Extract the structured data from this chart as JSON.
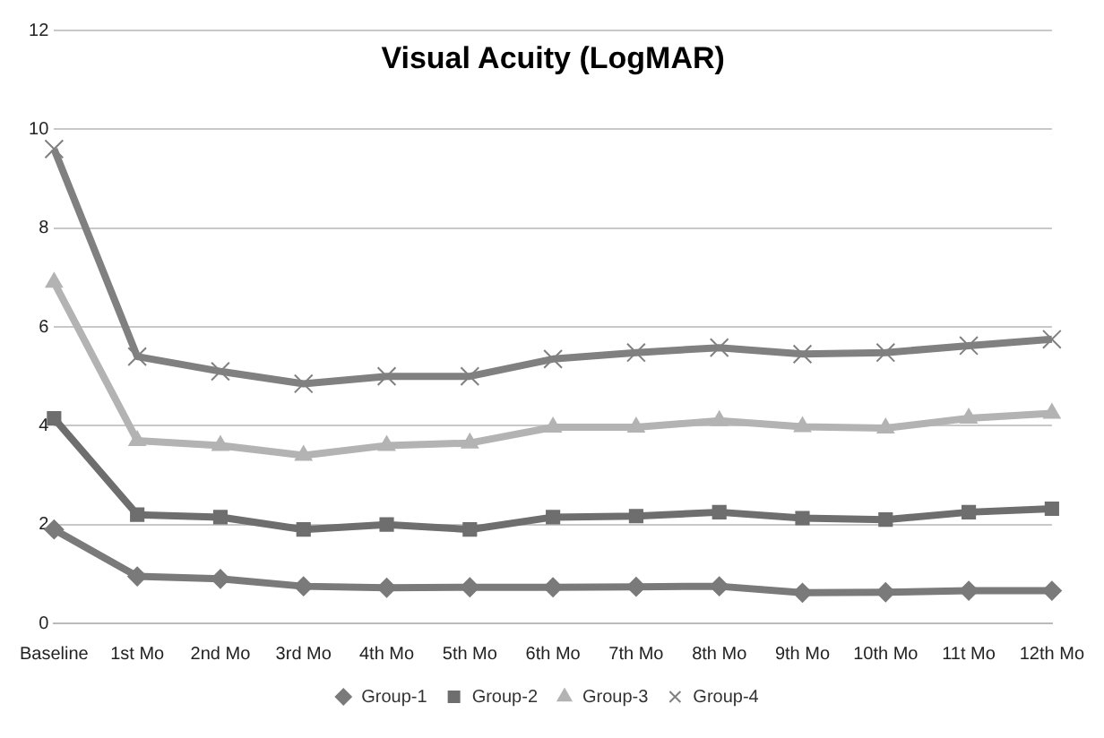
{
  "chart_data": {
    "type": "line",
    "title": "Visual Acuity (LogMAR)",
    "categories": [
      "Baseline",
      "1st Mo",
      "2nd Mo",
      "3rd Mo",
      "4th Mo",
      "5th Mo",
      "6th Mo",
      "7th Mo",
      "8th Mo",
      "9th Mo",
      "10th Mo",
      "11t Mo",
      "12th Mo"
    ],
    "series": [
      {
        "name": "Group-1",
        "color": "#7a7a7a",
        "marker": "diamond",
        "values": [
          1.9,
          0.95,
          0.9,
          0.75,
          0.72,
          0.73,
          0.73,
          0.74,
          0.75,
          0.62,
          0.63,
          0.66,
          0.66
        ]
      },
      {
        "name": "Group-2",
        "color": "#6e6e6e",
        "marker": "square",
        "values": [
          4.15,
          2.2,
          2.15,
          1.9,
          2.0,
          1.9,
          2.15,
          2.17,
          2.25,
          2.13,
          2.1,
          2.25,
          2.32
        ]
      },
      {
        "name": "Group-3",
        "color": "#b3b3b3",
        "marker": "triangle",
        "values": [
          6.9,
          3.7,
          3.6,
          3.4,
          3.6,
          3.65,
          3.97,
          3.97,
          4.1,
          3.98,
          3.95,
          4.15,
          4.25
        ]
      },
      {
        "name": "Group-4",
        "color": "#808080",
        "marker": "cross",
        "values": [
          9.6,
          5.4,
          5.1,
          4.85,
          5.0,
          5.0,
          5.35,
          5.48,
          5.58,
          5.45,
          5.48,
          5.62,
          5.75
        ]
      }
    ],
    "ylim": [
      0,
      12
    ],
    "yticks": [
      0,
      2,
      4,
      6,
      8,
      10,
      12
    ],
    "grid": "y",
    "legend": "bottom",
    "line_style": "solid"
  }
}
